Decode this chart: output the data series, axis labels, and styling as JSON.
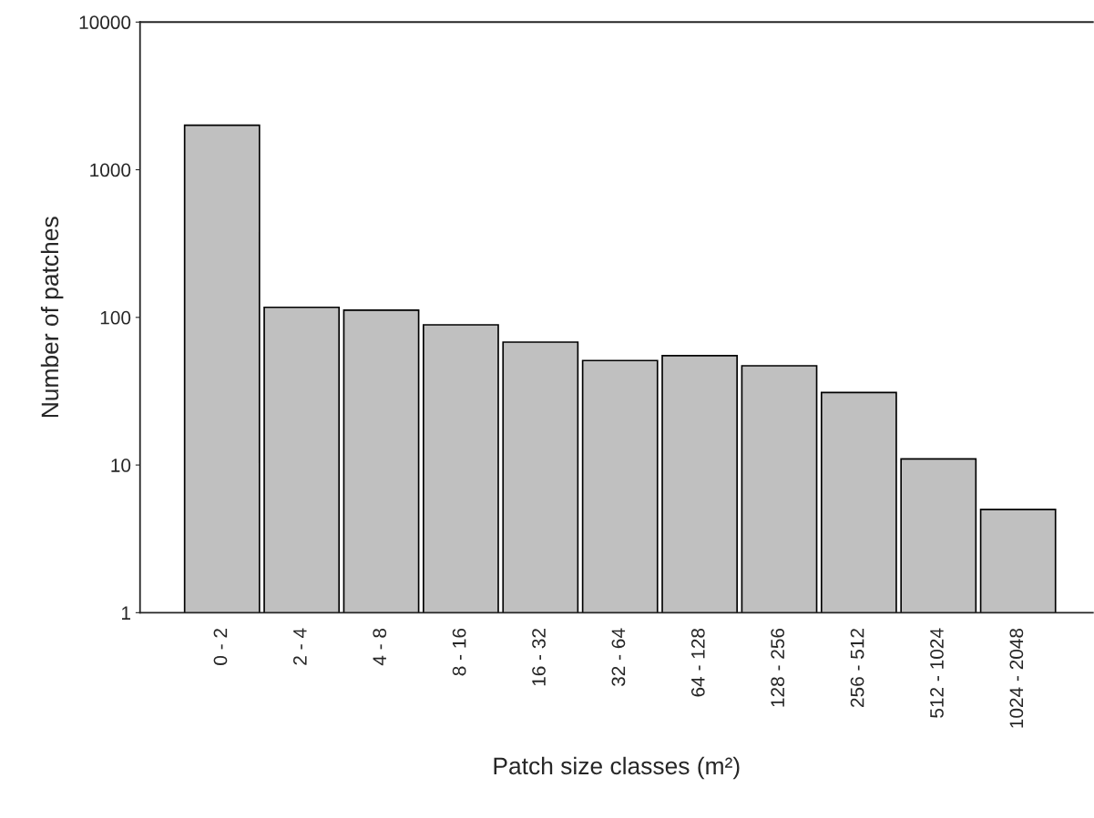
{
  "chart_data": {
    "type": "bar",
    "categories": [
      "0 - 2",
      "2 - 4",
      "4 - 8",
      "8 - 16",
      "16 - 32",
      "32 - 64",
      "64 - 128",
      "128 - 256",
      "256 - 512",
      "512 - 1024",
      "1024 - 2048"
    ],
    "values": [
      2000,
      117,
      112,
      89,
      68,
      51,
      55,
      47,
      31,
      11,
      5
    ],
    "color": "#c0c0c0",
    "xlabel": "Patch size classes (m²)",
    "ylabel": "Number of patches",
    "log": true,
    "ylim": [
      1,
      10000
    ],
    "yticks": [
      1,
      10,
      100,
      1000,
      10000
    ],
    "grid": false,
    "legend": false
  }
}
